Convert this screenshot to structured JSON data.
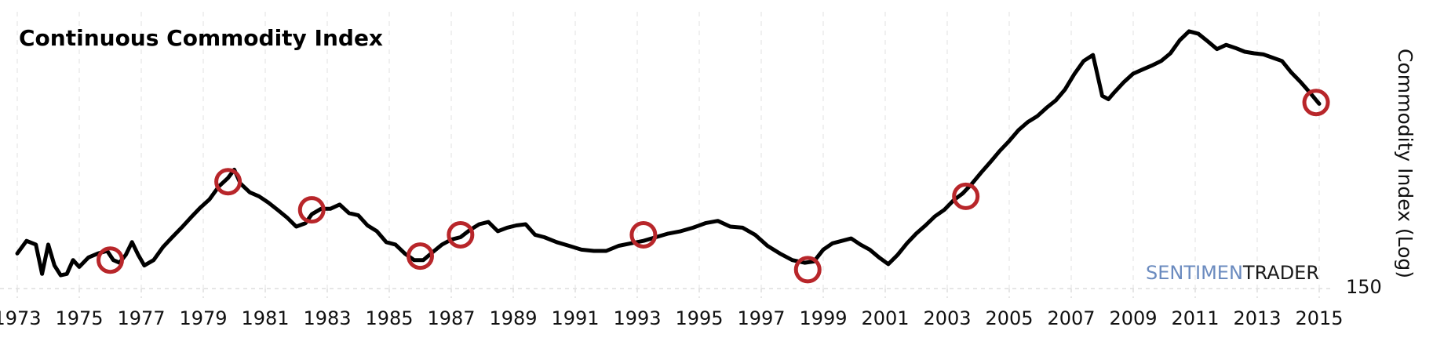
{
  "chart_data": {
    "type": "line",
    "title": "Continuous Commodity Index",
    "xlabel": "",
    "ylabel": "Commodity Index (Log)",
    "y_scale": "log",
    "y_tick_labels": [
      "150"
    ],
    "x_tick_labels": [
      "1973",
      "1975",
      "1977",
      "1979",
      "1981",
      "1983",
      "1985",
      "1987",
      "1989",
      "1991",
      "1993",
      "1995",
      "1997",
      "1999",
      "2001",
      "2003",
      "2005",
      "2007",
      "2009",
      "2011",
      "2013",
      "2015"
    ],
    "grid": true,
    "series": [
      {
        "color": "#000000",
        "x": [
          1973.0,
          1973.3,
          1973.6,
          1973.8,
          1974.0,
          1974.2,
          1974.4,
          1974.6,
          1974.8,
          1975.0,
          1975.3,
          1975.6,
          1975.9,
          1976.1,
          1976.3,
          1976.5,
          1976.7,
          1976.9,
          1977.1,
          1977.4,
          1977.7,
          1978.0,
          1978.3,
          1978.6,
          1978.9,
          1979.2,
          1979.5,
          1979.8,
          1980.0,
          1980.2,
          1980.5,
          1980.8,
          1981.1,
          1981.4,
          1981.7,
          1982.0,
          1982.3,
          1982.5,
          1982.8,
          1983.1,
          1983.4,
          1983.7,
          1984.0,
          1984.3,
          1984.6,
          1984.9,
          1985.2,
          1985.5,
          1985.8,
          1986.1,
          1986.4,
          1986.7,
          1987.0,
          1987.3,
          1987.6,
          1987.9,
          1988.2,
          1988.5,
          1988.8,
          1989.1,
          1989.4,
          1989.7,
          1990.0,
          1990.4,
          1990.8,
          1991.2,
          1991.6,
          1992.0,
          1992.4,
          1992.8,
          1993.2,
          1993.6,
          1994.0,
          1994.4,
          1994.8,
          1995.2,
          1995.6,
          1996.0,
          1996.4,
          1996.8,
          1997.2,
          1997.6,
          1998.0,
          1998.4,
          1998.7,
          1999.0,
          1999.3,
          1999.6,
          1999.9,
          2000.2,
          2000.5,
          2000.8,
          2001.1,
          2001.4,
          2001.7,
          2002.0,
          2002.3,
          2002.6,
          2002.9,
          2003.2,
          2003.5,
          2003.8,
          2004.1,
          2004.4,
          2004.7,
          2005.0,
          2005.3,
          2005.6,
          2005.9,
          2006.2,
          2006.5,
          2006.8,
          2007.1,
          2007.4,
          2007.7,
          2008.0,
          2008.2,
          2008.4,
          2008.7,
          2009.0,
          2009.3,
          2009.6,
          2009.9,
          2010.2,
          2010.5,
          2010.8,
          2011.1,
          2011.4,
          2011.7,
          2012.0,
          2012.3,
          2012.6,
          2012.9,
          2013.2,
          2013.5,
          2013.8,
          2014.1,
          2014.4,
          2014.7,
          2015.0
        ],
        "values": [
          175,
          185,
          182,
          160,
          182,
          166,
          159,
          160,
          170,
          165,
          172,
          175,
          177,
          170,
          168,
          174,
          184,
          174,
          166,
          170,
          180,
          188,
          196,
          205,
          214,
          222,
          235,
          244,
          253,
          238,
          229,
          225,
          219,
          212,
          205,
          197,
          200,
          208,
          213,
          213,
          217,
          209,
          207,
          198,
          193,
          184,
          182,
          175,
          170,
          170,
          176,
          182,
          186,
          188,
          194,
          199,
          201,
          193,
          196,
          198,
          199,
          190,
          188,
          184,
          181,
          178,
          177,
          177,
          181,
          183,
          185,
          188,
          191,
          193,
          196,
          200,
          202,
          197,
          196,
          190,
          181,
          175,
          170,
          168,
          169,
          178,
          183,
          185,
          187,
          182,
          178,
          172,
          167,
          174,
          183,
          191,
          198,
          206,
          212,
          221,
          228,
          238,
          250,
          262,
          275,
          287,
          301,
          312,
          320,
          332,
          343,
          360,
          385,
          408,
          419,
          350,
          345,
          356,
          372,
          386,
          393,
          400,
          408,
          422,
          447,
          465,
          460,
          445,
          430,
          438,
          432,
          425,
          422,
          420,
          414,
          408,
          388,
          372,
          355,
          338
        ]
      }
    ],
    "highlighted_points": [
      {
        "x": 1976.0,
        "y": 170
      },
      {
        "x": 1979.8,
        "y": 240
      },
      {
        "x": 1982.5,
        "y": 212
      },
      {
        "x": 1986.0,
        "y": 173
      },
      {
        "x": 1987.3,
        "y": 190
      },
      {
        "x": 1993.2,
        "y": 190
      },
      {
        "x": 1998.5,
        "y": 163
      },
      {
        "x": 2003.6,
        "y": 225
      },
      {
        "x": 2014.9,
        "y": 340
      }
    ],
    "highlight_color": "#b8262a",
    "watermark": {
      "part1": "SENTIMEN",
      "part2": "TRADER",
      "part1_color": "#6b8bbf",
      "part2_color": "#1a1a1a"
    }
  }
}
